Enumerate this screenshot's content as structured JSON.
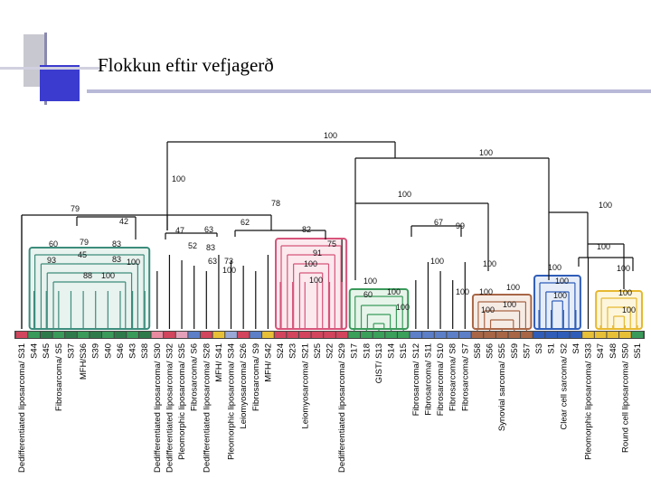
{
  "slide": {
    "title": "Flokkun eftir vefjagerð"
  },
  "colors": {
    "accent_blue": "#3b3bcf",
    "accent_gray": "#c8c8d0",
    "rule_blue": "#b8b8d8",
    "group_green": "#3a9a5a",
    "group_pink": "#d7547a",
    "group_teal": "#3c8c7c",
    "group_blue": "#2f5db8",
    "group_brown": "#a86646",
    "group_yellow": "#e6b830"
  },
  "dendrogram": {
    "bootstrap_labels": [
      "100",
      "100",
      "100",
      "79",
      "42",
      "78",
      "100",
      "100",
      "47",
      "63",
      "62",
      "82",
      "79",
      "83",
      "60",
      "45",
      "83",
      "93",
      "88",
      "100",
      "100",
      "52",
      "83",
      "63",
      "73",
      "100",
      "75",
      "91",
      "100",
      "100",
      "67",
      "99",
      "100",
      "100",
      "100",
      "100",
      "60",
      "100",
      "100",
      "100",
      "100",
      "100",
      "100",
      "100",
      "100",
      "100",
      "100",
      "100",
      "100",
      "100"
    ],
    "sample_labels": [
      "Dedifferentiated liposarcoma/ S31",
      "S44",
      "S45",
      "Fibrosarcoma/ S5",
      "S37",
      "MFH/S36",
      "S39",
      "S40",
      "S46",
      "S43",
      "S38",
      "Dedifferentiated liposarcoma/ S30",
      "Dedifferentiated liposarcoma/ S32",
      "Pleomorphic liposarcoma/ S35",
      "Fibrosarcoma/ S6",
      "Dedifferentiated liposarcoma/ S28",
      "MFH/ S41",
      "Pleomorphic liposarcoma/ S34",
      "Leiomyosarcoma/ S26",
      "Fibrosarcoma/ S9",
      "MFH/ S42",
      "S24",
      "S23",
      "Leiomyosarcoma/ S21",
      "S25",
      "S22",
      "Dedifferentiated liposarcoma/ S29",
      "S17",
      "S18",
      "GIST/ S13",
      "S14",
      "S15",
      "Fibrosarcoma/ S12",
      "Fibrosarcoma/ S11",
      "Fibrosarcoma/ S10",
      "Fibrosarcoma/ S8",
      "Fibrosarcoma/ S7",
      "S58",
      "S56",
      "Synovial sarcoma/ S55",
      "S59",
      "S57",
      "S3",
      "S1",
      "Clear cell sarcoma/ S2",
      "S4",
      "Pleomorphic liposarcoma/ S33",
      "S47",
      "S48",
      "Round cell liposarcoma/ S50",
      "S51"
    ]
  }
}
